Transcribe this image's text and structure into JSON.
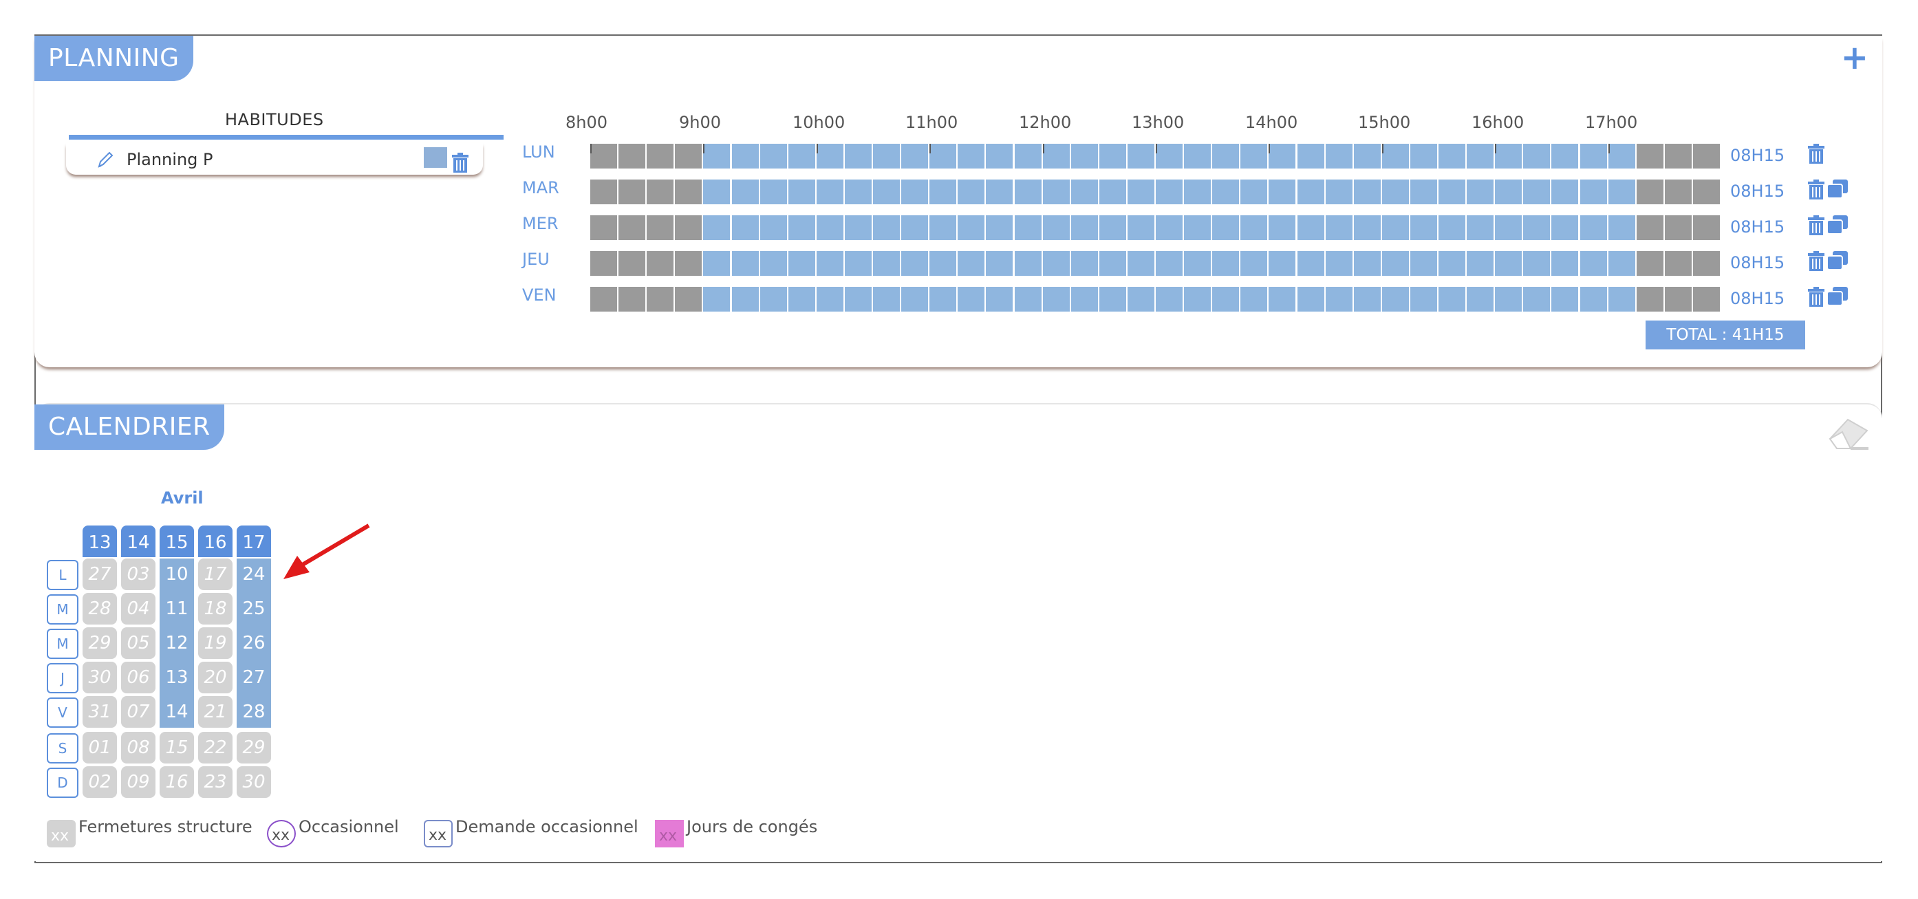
{
  "planning": {
    "title": "PLANNING",
    "add_label": "+",
    "habits_title": "HABITUDES",
    "habit_name": "Planning P",
    "time_labels": [
      "8h00",
      "9h00",
      "10h00",
      "11h00",
      "12h00",
      "13h00",
      "14h00",
      "15h00",
      "16h00",
      "17h00"
    ],
    "rows": [
      {
        "day": "LUN",
        "hours": "08H15",
        "copy": false
      },
      {
        "day": "MAR",
        "hours": "08H15",
        "copy": true
      },
      {
        "day": "MER",
        "hours": "08H15",
        "copy": true
      },
      {
        "day": "JEU",
        "hours": "08H15",
        "copy": true
      },
      {
        "day": "VEN",
        "hours": "08H15",
        "copy": true
      }
    ],
    "total": "TOTAL : 41H15"
  },
  "calendar": {
    "title": "CALENDRIER",
    "month": "Avril",
    "weeks": [
      "13",
      "14",
      "15",
      "16",
      "17"
    ],
    "dow": [
      "L",
      "M",
      "M",
      "J",
      "V",
      "S",
      "D"
    ],
    "days": [
      [
        "27",
        "28",
        "29",
        "30",
        "31",
        "01",
        "02"
      ],
      [
        "03",
        "04",
        "05",
        "06",
        "07",
        "08",
        "09"
      ],
      [
        "10",
        "11",
        "12",
        "13",
        "14",
        "15",
        "16"
      ],
      [
        "17",
        "18",
        "19",
        "20",
        "21",
        "22",
        "23"
      ],
      [
        "24",
        "25",
        "26",
        "27",
        "28",
        "29",
        "30"
      ]
    ],
    "legend": [
      {
        "sym": "xx",
        "label": "Fermetures structure"
      },
      {
        "sym": "xx",
        "label": "Occasionnel"
      },
      {
        "sym": "xx",
        "label": "Demande occasionnel"
      },
      {
        "sym": "xx",
        "label": "Jours de congés"
      }
    ]
  },
  "colors": {
    "accent": "#5b8fdc",
    "header": "#7ca7e4",
    "slot": "#8fb6df",
    "closed": "#9a9a9a",
    "holiday": "#e47bd6"
  }
}
